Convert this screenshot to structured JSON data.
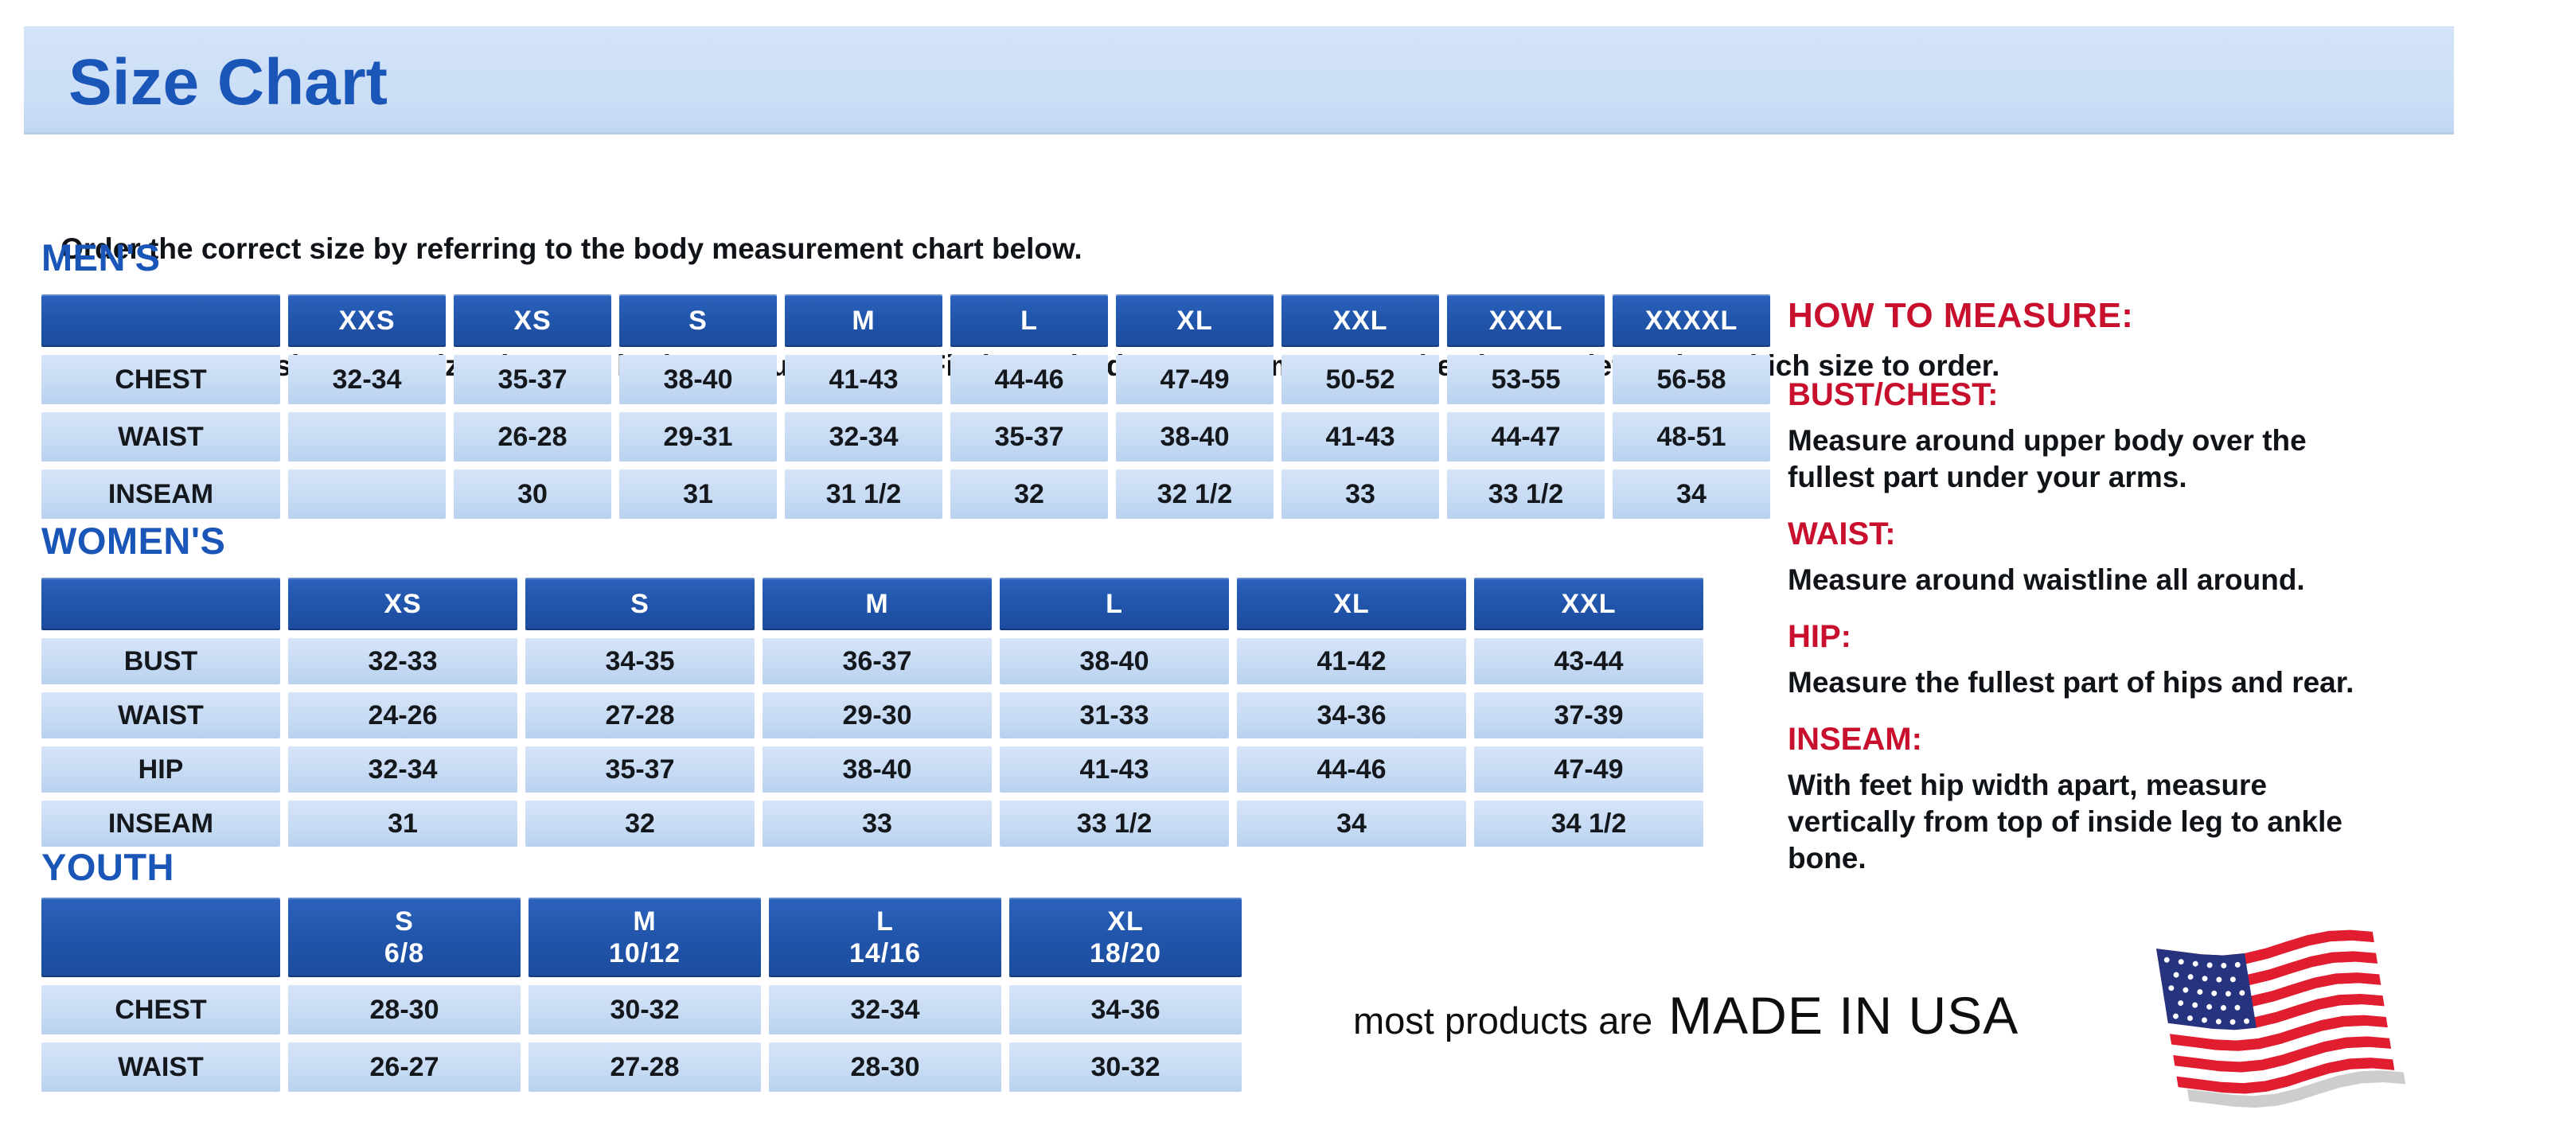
{
  "page": {
    "title": "Size Chart",
    "intro_line1": "Order the correct size by referring to the body measurement chart below.",
    "intro_line2": "Measurements shown on size chart are body measurements.  Find your body measurements on the chart to determine which size to order."
  },
  "tables": {
    "men": {
      "label": "MEN'S",
      "columns": [
        "XXS",
        "XS",
        "S",
        "M",
        "L",
        "XL",
        "XXL",
        "XXXL",
        "XXXXL"
      ],
      "rows": [
        {
          "label": "CHEST",
          "values": [
            "32-34",
            "35-37",
            "38-40",
            "41-43",
            "44-46",
            "47-49",
            "50-52",
            "53-55",
            "56-58"
          ]
        },
        {
          "label": "WAIST",
          "values": [
            "",
            "26-28",
            "29-31",
            "32-34",
            "35-37",
            "38-40",
            "41-43",
            "44-47",
            "48-51"
          ]
        },
        {
          "label": "INSEAM",
          "values": [
            "",
            "30",
            "31",
            "31 1/2",
            "32",
            "32 1/2",
            "33",
            "33 1/2",
            "34"
          ]
        }
      ]
    },
    "women": {
      "label": "WOMEN'S",
      "columns": [
        "XS",
        "S",
        "M",
        "L",
        "XL",
        "XXL"
      ],
      "rows": [
        {
          "label": "BUST",
          "values": [
            "32-33",
            "34-35",
            "36-37",
            "38-40",
            "41-42",
            "43-44"
          ]
        },
        {
          "label": "WAIST",
          "values": [
            "24-26",
            "27-28",
            "29-30",
            "31-33",
            "34-36",
            "37-39"
          ]
        },
        {
          "label": "HIP",
          "values": [
            "32-34",
            "35-37",
            "38-40",
            "41-43",
            "44-46",
            "47-49"
          ]
        },
        {
          "label": "INSEAM",
          "values": [
            "31",
            "32",
            "33",
            "33 1/2",
            "34",
            "34 1/2"
          ]
        }
      ]
    },
    "youth": {
      "label": "YOUTH",
      "columns": [
        {
          "size": "S",
          "range": "6/8"
        },
        {
          "size": "M",
          "range": "10/12"
        },
        {
          "size": "L",
          "range": "14/16"
        },
        {
          "size": "XL",
          "range": "18/20"
        }
      ],
      "rows": [
        {
          "label": "CHEST",
          "values": [
            "28-30",
            "30-32",
            "32-34",
            "34-36"
          ]
        },
        {
          "label": "WAIST",
          "values": [
            "26-27",
            "27-28",
            "28-30",
            "30-32"
          ]
        }
      ]
    }
  },
  "how_to_measure": {
    "heading": "HOW TO MEASURE:",
    "items": [
      {
        "label": "BUST/CHEST:",
        "text": "Measure around upper body over the fullest part under your arms."
      },
      {
        "label": "WAIST:",
        "text": "Measure around waistline all around."
      },
      {
        "label": "HIP:",
        "text": "Measure the fullest part of hips and rear."
      },
      {
        "label": "INSEAM:",
        "text": "With feet hip width apart, measure vertically from top of inside leg to ankle bone."
      }
    ]
  },
  "footer": {
    "made_prefix": "most products are",
    "made_emphasis": "MADE IN USA",
    "flag_icon": "us-flag-icon"
  },
  "colors": {
    "table_header_blue": "#2156ac",
    "table_cell_blue": "#c7dbf4",
    "title_band_blue": "#cbdef6",
    "title_text_blue": "#1a55b8",
    "accent_red": "#c8102e",
    "flag_red": "#e11d30",
    "flag_navy": "#26337f"
  }
}
